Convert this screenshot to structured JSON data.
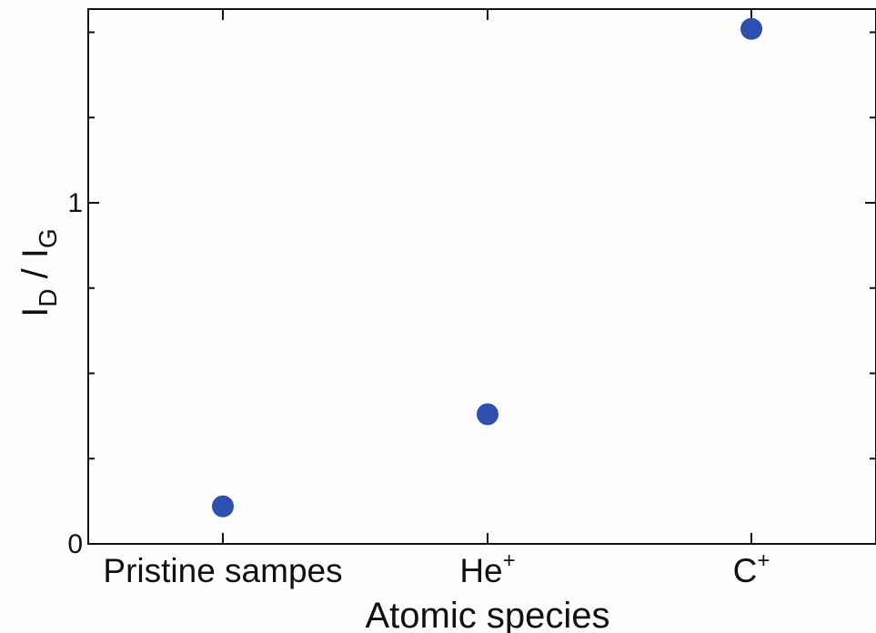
{
  "chart_data": {
    "type": "scatter",
    "title": "",
    "xlabel": "Atomic species",
    "ylabel": {
      "i1": "I",
      "sub1": "D",
      "sep": " / ",
      "i2": "I",
      "sub2": "G"
    },
    "categories": [
      {
        "label": "Pristine sampes",
        "sup": ""
      },
      {
        "label": "He",
        "sup": "+"
      },
      {
        "label": "C",
        "sup": "+"
      }
    ],
    "values": [
      0.11,
      0.38,
      1.51
    ],
    "ylim": [
      0,
      1.52
    ],
    "yticks": [
      0,
      1
    ],
    "ytick_labels": [
      "0",
      "1"
    ],
    "grid": false,
    "legend": "none",
    "marker_color": "#2d4fae"
  }
}
